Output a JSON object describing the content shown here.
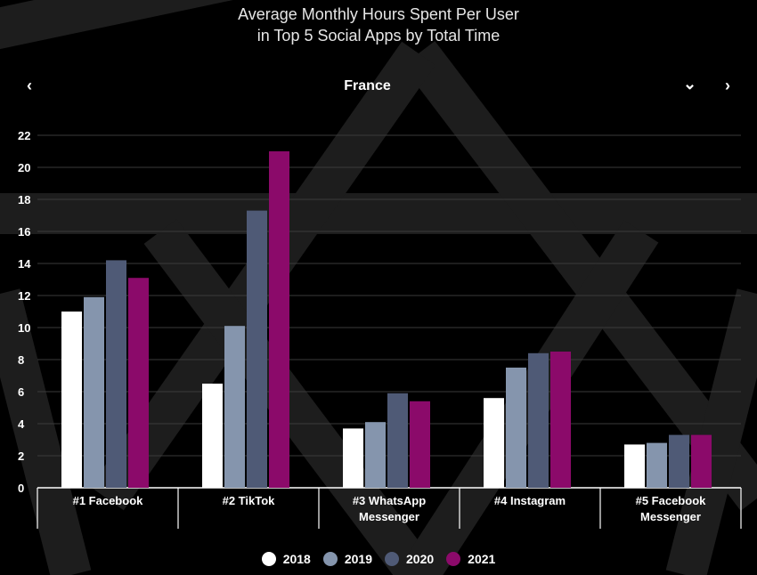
{
  "title_line1": "Average Monthly Hours Spent Per User",
  "title_line2": "in Top 5 Social Apps by Total Time",
  "selector": {
    "country": "France",
    "prev_icon": "‹",
    "dropdown_icon": "⌄",
    "next_icon": "›"
  },
  "colors": {
    "background": "#000000",
    "grid": "#3a3a3a",
    "axis": "#ffffff"
  },
  "chart_data": {
    "type": "bar",
    "title": "Average Monthly Hours Spent Per User in Top 5 Social Apps by Total Time",
    "categories": [
      [
        "#1 Facebook"
      ],
      [
        "#2 TikTok"
      ],
      [
        "#3 WhatsApp",
        "Messenger"
      ],
      [
        "#4 Instagram"
      ],
      [
        "#5 Facebook",
        "Messenger"
      ]
    ],
    "series": [
      {
        "name": "2018",
        "color": "#ffffff",
        "values": [
          11.0,
          6.5,
          3.7,
          5.6,
          2.7
        ]
      },
      {
        "name": "2019",
        "color": "#8595ad",
        "values": [
          11.9,
          10.1,
          4.1,
          7.5,
          2.8
        ]
      },
      {
        "name": "2020",
        "color": "#4f5a76",
        "values": [
          14.2,
          17.3,
          5.9,
          8.4,
          3.3
        ]
      },
      {
        "name": "2021",
        "color": "#8b0a6a",
        "values": [
          13.1,
          21.0,
          5.4,
          8.5,
          3.3
        ]
      }
    ],
    "y_ticks": [
      0,
      2,
      4,
      6,
      8,
      10,
      12,
      14,
      16,
      18,
      20,
      22
    ],
    "ylim": [
      0,
      22
    ],
    "grid": true,
    "legend_position": "bottom"
  }
}
